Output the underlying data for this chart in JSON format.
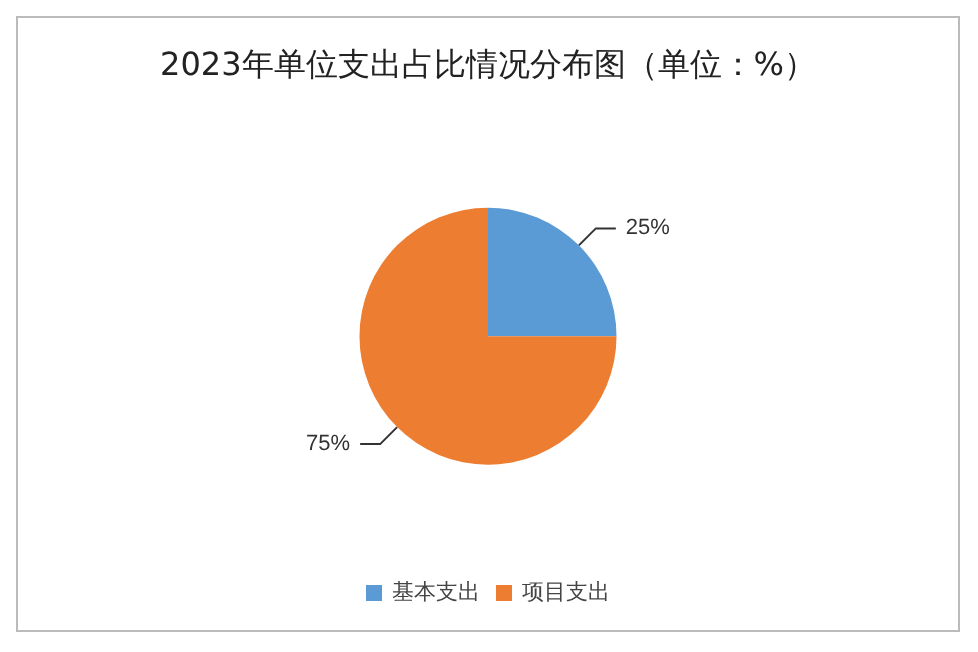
{
  "chart_data": {
    "type": "pie",
    "title": "2023年单位支出占比情况分布图（单位：%）",
    "categories": [
      "基本支出",
      "项目支出"
    ],
    "values": [
      25,
      75
    ],
    "colors": [
      "#5b9bd5",
      "#ed7d31"
    ],
    "value_labels": [
      "25%",
      "75%"
    ],
    "legend": "bottom"
  }
}
